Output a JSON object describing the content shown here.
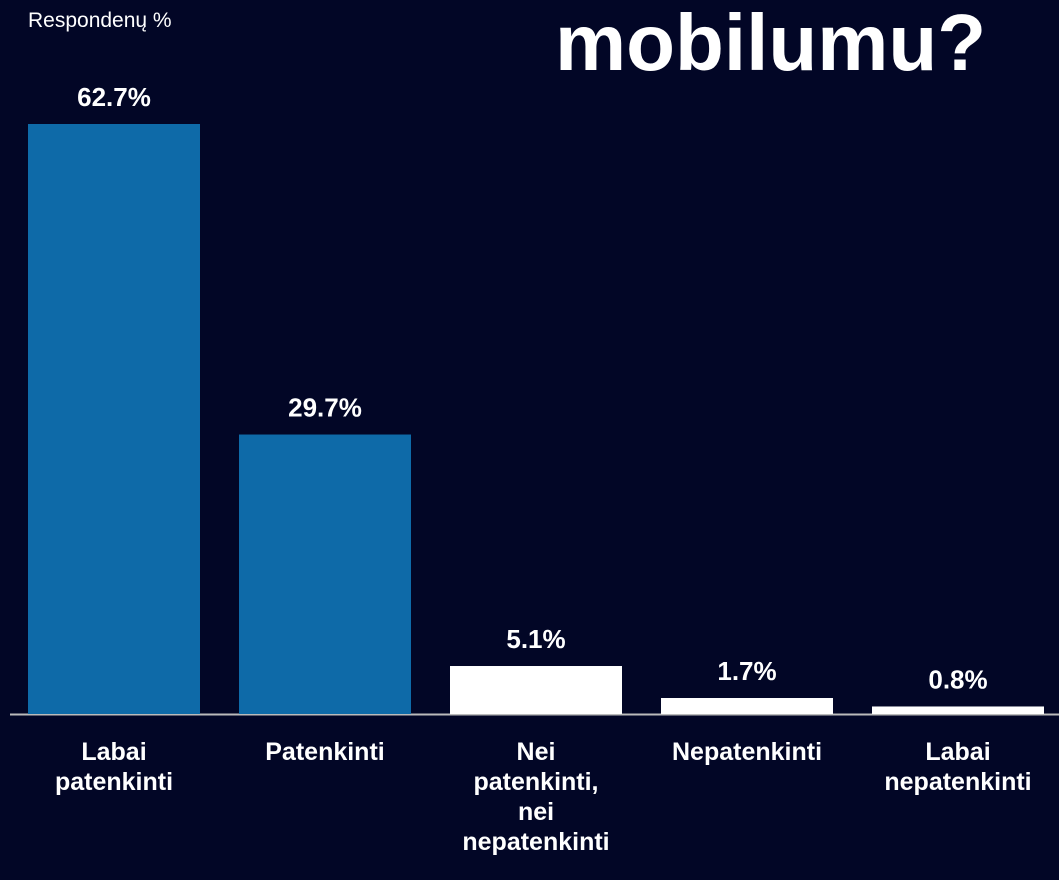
{
  "chart_data": {
    "type": "bar",
    "title": "mobilumu?",
    "y_label": "Respondenų %",
    "categories": [
      "Labai patenkinti",
      "Patenkinti",
      "Nei patenkinti, nei nepatenkinti",
      "Nepatenkinti",
      "Labai nepatenkinti"
    ],
    "values": [
      62.7,
      29.7,
      5.1,
      1.7,
      0.8
    ],
    "value_labels": [
      "62.7%",
      "29.7%",
      "5.1%",
      "1.7%",
      "0.8%"
    ],
    "colors": [
      "#0e6aa8",
      "#0e6aa8",
      "#ffffff",
      "#ffffff",
      "#ffffff"
    ]
  }
}
